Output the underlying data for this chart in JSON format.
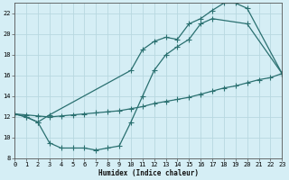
{
  "xlabel": "Humidex (Indice chaleur)",
  "bg_color": "#d5eef5",
  "grid_color": "#b8d8e0",
  "line_color": "#2a7070",
  "line1_x": [
    0,
    1,
    2,
    3,
    10,
    11,
    12,
    13,
    14,
    15,
    16,
    17,
    18,
    19,
    20,
    23
  ],
  "line1_y": [
    12.3,
    12.0,
    11.5,
    12.2,
    16.5,
    18.5,
    19.3,
    19.7,
    19.5,
    21.0,
    21.5,
    22.3,
    23.0,
    23.0,
    22.5,
    16.2
  ],
  "line2_x": [
    0,
    1,
    2,
    3,
    4,
    5,
    6,
    7,
    8,
    9,
    10,
    11,
    12,
    13,
    14,
    15,
    16,
    17,
    20,
    23
  ],
  "line2_y": [
    12.3,
    12.0,
    11.5,
    9.5,
    9.0,
    9.0,
    9.0,
    8.8,
    9.0,
    9.2,
    11.5,
    14.0,
    16.5,
    18.0,
    18.8,
    19.5,
    21.0,
    21.5,
    21.0,
    16.2
  ],
  "line3_x": [
    0,
    1,
    2,
    3,
    4,
    5,
    6,
    7,
    8,
    9,
    10,
    11,
    12,
    13,
    14,
    15,
    16,
    17,
    18,
    19,
    20,
    21,
    22,
    23
  ],
  "line3_y": [
    12.3,
    12.2,
    12.1,
    12.0,
    12.1,
    12.2,
    12.3,
    12.4,
    12.5,
    12.6,
    12.8,
    13.0,
    13.3,
    13.5,
    13.7,
    13.9,
    14.2,
    14.5,
    14.8,
    15.0,
    15.3,
    15.6,
    15.8,
    16.2
  ],
  "xlim": [
    0,
    23
  ],
  "ylim": [
    8,
    23
  ],
  "yticks": [
    8,
    10,
    12,
    14,
    16,
    18,
    20,
    22
  ],
  "xticks": [
    0,
    1,
    2,
    3,
    4,
    5,
    6,
    7,
    8,
    9,
    10,
    11,
    12,
    13,
    14,
    15,
    16,
    17,
    18,
    19,
    20,
    21,
    22,
    23
  ]
}
